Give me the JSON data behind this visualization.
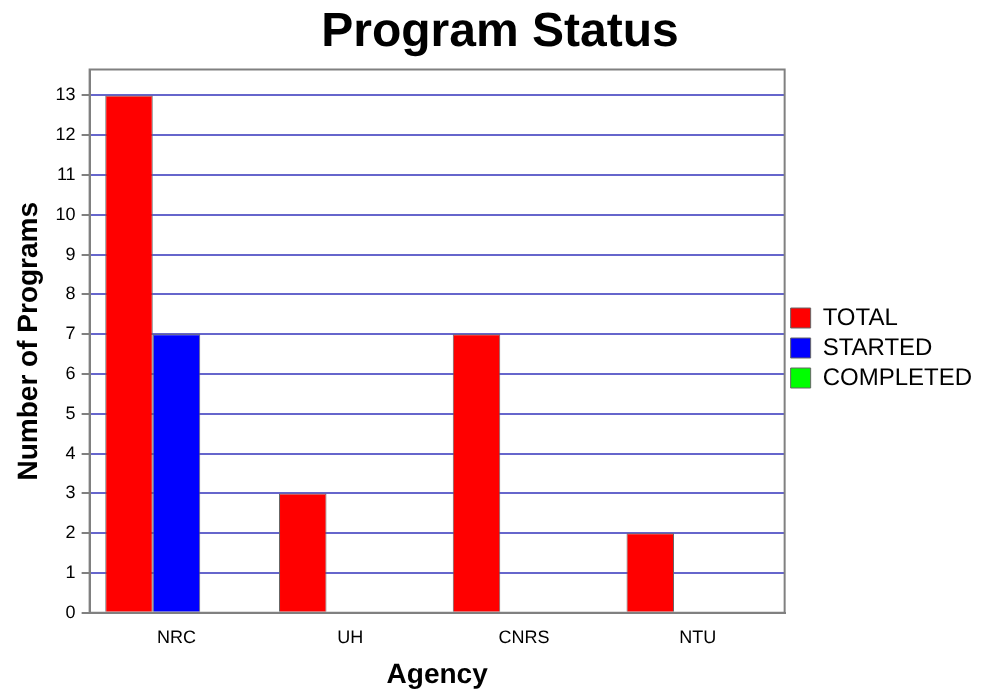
{
  "chart_data": {
    "type": "bar",
    "title": "Program Status",
    "xlabel": "Agency",
    "ylabel": "Number of Programs",
    "categories": [
      "NRC",
      "UH",
      "CNRS",
      "NTU"
    ],
    "series": [
      {
        "name": "TOTAL",
        "color": "#ff0000",
        "values": [
          13,
          3,
          7,
          2
        ]
      },
      {
        "name": "STARTED",
        "color": "#0000ff",
        "values": [
          7,
          0,
          0,
          0
        ]
      },
      {
        "name": "COMPLETED",
        "color": "#00ff00",
        "values": [
          0,
          0,
          0,
          0
        ]
      }
    ],
    "ylim": [
      0,
      13.65
    ],
    "yticks": [
      0,
      1,
      2,
      3,
      4,
      5,
      6,
      7,
      8,
      9,
      10,
      11,
      12,
      13
    ],
    "grid": "y",
    "legend": "right"
  }
}
